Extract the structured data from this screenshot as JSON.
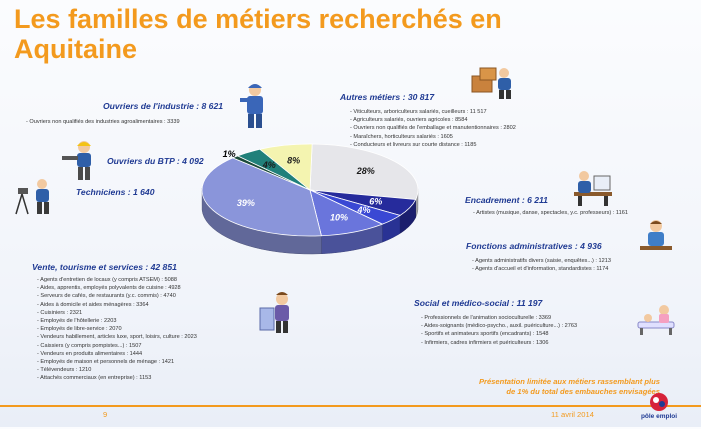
{
  "title": "Les familles de métiers recherchés en Aquitaine",
  "chart_data": {
    "type": "pie",
    "slices": [
      {
        "name": "Autres métiers",
        "value": 28,
        "label": "28%",
        "color": "#e6e6ea",
        "label_color": "#1a1a1a"
      },
      {
        "name": "Encadrement",
        "value": 6,
        "label": "6%",
        "color": "#262b9c",
        "label_color": "#ffffff"
      },
      {
        "name": "Fonctions administratives",
        "value": 4,
        "label": "4%",
        "color": "#3a48d4",
        "label_color": "#ffffff"
      },
      {
        "name": "Social et médico-social",
        "value": 10,
        "label": "10%",
        "color": "#6a75dc",
        "label_color": "#ffffff"
      },
      {
        "name": "Vente, tourisme et services",
        "value": 39,
        "label": "39%",
        "color": "#8a95da",
        "label_color": "#ffffff"
      },
      {
        "name": "Techniciens",
        "value": 1,
        "label": "1%",
        "color": "#1a4a3a",
        "label_color": "#000000"
      },
      {
        "name": "Ouvriers du BTP",
        "value": 4,
        "label": "4%",
        "color": "#20807a",
        "label_color": "#1a1a1a"
      },
      {
        "name": "Ouvriers de l'industrie",
        "value": 8,
        "label": "8%",
        "color": "#f4f4b0",
        "label_color": "#1a1a1a"
      }
    ]
  },
  "categories": {
    "industrie": {
      "title": "Ouvriers de l'industrie : 8 621",
      "items": [
        "- Ouvriers non qualifiés des industries agroalimentaires : 3339"
      ]
    },
    "btp": {
      "title": "Ouvriers du BTP : 4 092"
    },
    "techniciens": {
      "title": "Techniciens : 1 640"
    },
    "autres": {
      "title": "Autres métiers : 30 817",
      "items": [
        "- Viticulteurs, arboriculteurs salariés, cueilleurs : 11 517",
        "- Agriculteurs salariés, ouvriers agricoles : 8584",
        "- Ouvriers non qualifiés de l'emballage et manutentionnaires : 2802",
        "- Maraîchers, horticulteurs salariés : 1605",
        "- Conducteurs et livreurs sur courte distance : 1185"
      ]
    },
    "encadrement": {
      "title": "Encadrement : 6 211",
      "items": [
        "- Artistes (musique, danse, spectacles, y.c. professeurs) : 1161"
      ]
    },
    "administratives": {
      "title": "Fonctions administratives : 4 936",
      "items": [
        "- Agents administratifs divers (saisie, enquêtes...) : 1213",
        "- Agents d'accueil et d'information, standardistes : 1174"
      ]
    },
    "vente": {
      "title": "Vente, tourisme et services : 42 851",
      "items": [
        "- Agents d'entretien de locaux (y compris ATSEM) : 5088",
        "- Aides, apprentis, employés polyvalents de cuisine : 4928",
        "- Serveurs de cafés, de restaurants (y.c. commis) : 4740",
        "- Aides à domicile et aides ménagères : 3364",
        "- Cuisiniers : 2321",
        "- Employés de l'hôtellerie : 2203",
        "- Employés de libre-service : 2070",
        "- Vendeurs habillement, articles luxe, sport, loisirs, culture : 2023",
        "- Caissiers (y compris pompistes...) : 1507",
        "- Vendeurs en produits alimentaires : 1444",
        "- Employés de maison et personnels de ménage : 1421",
        "- Télévendeurs : 1210",
        "- Attachés commerciaux (en entreprise) : 1153"
      ]
    },
    "social": {
      "title": "Social et médico-social : 11 197",
      "items": [
        "- Professionnels de l'animation socioculturelle : 3369",
        "- Aides-soignants (médico-psycho., auxil. puériculture...) : 2763",
        "- Sportifs et animateurs sportifs (encadrants) : 1548",
        "- Infirmiers, cadres infirmiers et puériculteurs : 1306"
      ]
    }
  },
  "footnote": [
    "Présentation limitée aux métiers rassemblant plus",
    "de 1% du total des embauches envisagées"
  ],
  "footer": {
    "page": "9",
    "date": "11 avril 2014",
    "logo_text": "pôle emploi"
  },
  "colors": {
    "orange": "#f39a1e",
    "navy": "#1f3a93"
  },
  "icons": [
    "worker-icon",
    "construction-worker-icon",
    "surveyor-icon",
    "mover-icon",
    "manager-icon",
    "office-worker-icon",
    "cook-icon",
    "nurse-icon",
    "pole-emploi-logo"
  ]
}
